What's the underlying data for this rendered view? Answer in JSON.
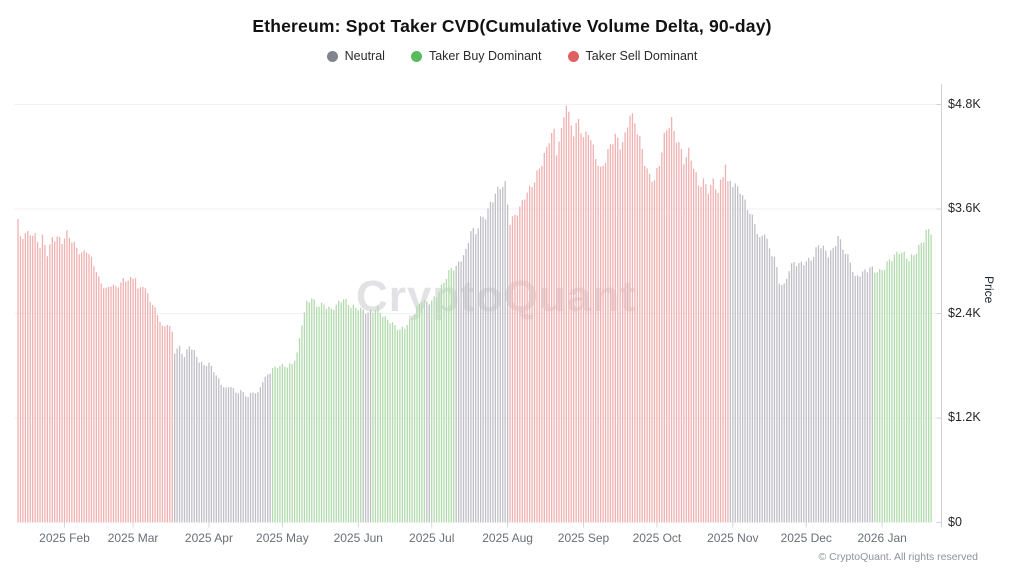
{
  "chart_data": {
    "type": "bar",
    "title": "Ethereum: Spot Taker CVD(Cumulative Volume Delta, 90-day)",
    "watermark": "CryptoQuant",
    "footer": "© CryptoQuant. All rights reserved",
    "legend": [
      {
        "key": "neutral",
        "label": "Neutral",
        "dot_color": "#83838d",
        "bar_color": "#bfbfc6"
      },
      {
        "key": "buy",
        "label": "Taker Buy Dominant",
        "dot_color": "#58bc5c",
        "bar_color": "#b2dbad"
      },
      {
        "key": "sell",
        "label": "Taker Sell Dominant",
        "dot_color": "#e15f5f",
        "bar_color": "#f0b1b1"
      }
    ],
    "y_axis": {
      "label": "Price",
      "unit": "USD",
      "range": [
        0,
        5000
      ],
      "ticks": [
        {
          "label": "$4.8K",
          "value": 4800
        },
        {
          "label": "$3.6K",
          "value": 3600
        },
        {
          "label": "$2.4K",
          "value": 2400
        },
        {
          "label": "$1.2K",
          "value": 1200
        },
        {
          "label": "$0",
          "value": 0
        }
      ]
    },
    "x_axis": {
      "unit": "day-index (daily bars, ~Jan 2025 to Jan 2026)",
      "ticks": [
        {
          "label": "2025 Feb",
          "day": 19
        },
        {
          "label": "2025 Mar",
          "day": 47
        },
        {
          "label": "2025 Apr",
          "day": 78
        },
        {
          "label": "2025 May",
          "day": 108
        },
        {
          "label": "2025 Jun",
          "day": 139
        },
        {
          "label": "2025 Jul",
          "day": 169
        },
        {
          "label": "2025 Aug",
          "day": 200
        },
        {
          "label": "2025 Sep",
          "day": 231
        },
        {
          "label": "2025 Oct",
          "day": 261
        },
        {
          "label": "2025 Nov",
          "day": 292
        },
        {
          "label": "2025 Dec",
          "day": 322
        },
        {
          "label": "2026 Jan",
          "day": 353
        }
      ]
    },
    "series": {
      "name": "ETH price colored by taker CVD state",
      "point_format": [
        "day",
        "price_usd",
        "state"
      ],
      "keypoints": [
        [
          0,
          3440,
          "sell"
        ],
        [
          1,
          3260,
          "sell"
        ],
        [
          3,
          3330,
          "sell"
        ],
        [
          5,
          3350,
          "sell"
        ],
        [
          7,
          3290,
          "sell"
        ],
        [
          9,
          3160,
          "sell"
        ],
        [
          10,
          3250,
          "sell"
        ],
        [
          12,
          3080,
          "sell"
        ],
        [
          14,
          3270,
          "sell"
        ],
        [
          16,
          3300,
          "sell"
        ],
        [
          18,
          3230,
          "sell"
        ],
        [
          20,
          3300,
          "sell"
        ],
        [
          23,
          3180,
          "sell"
        ],
        [
          26,
          3100,
          "sell"
        ],
        [
          28,
          3150,
          "sell"
        ],
        [
          31,
          2950,
          "sell"
        ],
        [
          33,
          2780,
          "sell"
        ],
        [
          36,
          2680,
          "sell"
        ],
        [
          38,
          2760,
          "sell"
        ],
        [
          40,
          2700,
          "sell"
        ],
        [
          43,
          2760,
          "sell"
        ],
        [
          46,
          2790,
          "sell"
        ],
        [
          48,
          2850,
          "sell"
        ],
        [
          49,
          2680,
          "sell"
        ],
        [
          51,
          2740,
          "sell"
        ],
        [
          53,
          2600,
          "sell"
        ],
        [
          55,
          2480,
          "sell"
        ],
        [
          57,
          2400,
          "sell"
        ],
        [
          59,
          2250,
          "sell"
        ],
        [
          61,
          2300,
          "sell"
        ],
        [
          63,
          2180,
          "sell"
        ],
        [
          64,
          1950,
          "neutral"
        ],
        [
          66,
          2000,
          "neutral"
        ],
        [
          68,
          1900,
          "neutral"
        ],
        [
          70,
          2050,
          "neutral"
        ],
        [
          72,
          1970,
          "neutral"
        ],
        [
          74,
          1850,
          "neutral"
        ],
        [
          76,
          1790,
          "neutral"
        ],
        [
          78,
          1820,
          "neutral"
        ],
        [
          80,
          1750,
          "neutral"
        ],
        [
          83,
          1600,
          "neutral"
        ],
        [
          85,
          1530,
          "neutral"
        ],
        [
          87,
          1560,
          "neutral"
        ],
        [
          89,
          1480,
          "neutral"
        ],
        [
          91,
          1520,
          "neutral"
        ],
        [
          94,
          1450,
          "neutral"
        ],
        [
          96,
          1500,
          "neutral"
        ],
        [
          98,
          1470,
          "neutral"
        ],
        [
          100,
          1620,
          "neutral"
        ],
        [
          102,
          1700,
          "neutral"
        ],
        [
          104,
          1780,
          "buy"
        ],
        [
          107,
          1800,
          "buy"
        ],
        [
          110,
          1780,
          "buy"
        ],
        [
          112,
          1820,
          "buy"
        ],
        [
          114,
          1950,
          "buy"
        ],
        [
          116,
          2300,
          "buy"
        ],
        [
          118,
          2520,
          "buy"
        ],
        [
          120,
          2560,
          "buy"
        ],
        [
          122,
          2480,
          "buy"
        ],
        [
          125,
          2520,
          "buy"
        ],
        [
          128,
          2450,
          "buy"
        ],
        [
          130,
          2480,
          "buy"
        ],
        [
          133,
          2560,
          "buy"
        ],
        [
          136,
          2500,
          "buy"
        ],
        [
          139,
          2470,
          "buy"
        ],
        [
          141,
          2420,
          "neutral"
        ],
        [
          143,
          2390,
          "neutral"
        ],
        [
          145,
          2430,
          "buy"
        ],
        [
          147,
          2480,
          "buy"
        ],
        [
          150,
          2350,
          "buy"
        ],
        [
          152,
          2300,
          "buy"
        ],
        [
          154,
          2240,
          "buy"
        ],
        [
          156,
          2210,
          "buy"
        ],
        [
          158,
          2260,
          "buy"
        ],
        [
          160,
          2320,
          "buy"
        ],
        [
          163,
          2450,
          "buy"
        ],
        [
          165,
          2540,
          "buy"
        ],
        [
          167,
          2520,
          "neutral"
        ],
        [
          169,
          2560,
          "buy"
        ],
        [
          171,
          2620,
          "buy"
        ],
        [
          173,
          2700,
          "buy"
        ],
        [
          175,
          2800,
          "buy"
        ],
        [
          177,
          2905,
          "buy"
        ],
        [
          179,
          2940,
          "neutral"
        ],
        [
          181,
          3050,
          "neutral"
        ],
        [
          183,
          3120,
          "neutral"
        ],
        [
          185,
          3345,
          "neutral"
        ],
        [
          187,
          3300,
          "neutral"
        ],
        [
          189,
          3480,
          "neutral"
        ],
        [
          191,
          3540,
          "neutral"
        ],
        [
          193,
          3680,
          "neutral"
        ],
        [
          195,
          3770,
          "neutral"
        ],
        [
          197,
          3830,
          "neutral"
        ],
        [
          199,
          3860,
          "neutral"
        ],
        [
          201,
          3460,
          "sell"
        ],
        [
          203,
          3550,
          "sell"
        ],
        [
          205,
          3620,
          "sell"
        ],
        [
          207,
          3730,
          "sell"
        ],
        [
          209,
          3800,
          "sell"
        ],
        [
          211,
          3920,
          "sell"
        ],
        [
          213,
          4100,
          "sell"
        ],
        [
          215,
          4230,
          "sell"
        ],
        [
          217,
          4400,
          "sell"
        ],
        [
          219,
          4460,
          "sell"
        ],
        [
          220,
          4230,
          "sell"
        ],
        [
          222,
          4480,
          "sell"
        ],
        [
          223,
          4700,
          "sell"
        ],
        [
          224,
          4840,
          "sell"
        ],
        [
          225,
          4700,
          "sell"
        ],
        [
          227,
          4490,
          "sell"
        ],
        [
          229,
          4600,
          "sell"
        ],
        [
          231,
          4375,
          "sell"
        ],
        [
          233,
          4490,
          "sell"
        ],
        [
          235,
          4320,
          "sell"
        ],
        [
          238,
          4055,
          "sell"
        ],
        [
          240,
          4150,
          "sell"
        ],
        [
          242,
          4300,
          "sell"
        ],
        [
          244,
          4440,
          "sell"
        ],
        [
          246,
          4350,
          "sell"
        ],
        [
          248,
          4460,
          "sell"
        ],
        [
          250,
          4700,
          "sell"
        ],
        [
          252,
          4560,
          "sell"
        ],
        [
          254,
          4380,
          "sell"
        ],
        [
          256,
          4150,
          "sell"
        ],
        [
          258,
          4000,
          "sell"
        ],
        [
          260,
          3950,
          "sell"
        ],
        [
          262,
          4100,
          "sell"
        ],
        [
          264,
          4400,
          "sell"
        ],
        [
          266,
          4570,
          "sell"
        ],
        [
          267,
          4630,
          "sell"
        ],
        [
          268,
          4500,
          "sell"
        ],
        [
          270,
          4380,
          "sell"
        ],
        [
          272,
          4150,
          "sell"
        ],
        [
          274,
          4230,
          "sell"
        ],
        [
          276,
          4070,
          "sell"
        ],
        [
          278,
          3880,
          "sell"
        ],
        [
          280,
          3950,
          "sell"
        ],
        [
          282,
          3830,
          "sell"
        ],
        [
          284,
          3900,
          "sell"
        ],
        [
          286,
          3770,
          "sell"
        ],
        [
          288,
          3980,
          "sell"
        ],
        [
          289,
          4150,
          "sell"
        ],
        [
          290,
          3900,
          "sell"
        ],
        [
          291,
          3950,
          "neutral"
        ],
        [
          293,
          3880,
          "neutral"
        ],
        [
          295,
          3800,
          "neutral"
        ],
        [
          297,
          3650,
          "neutral"
        ],
        [
          299,
          3550,
          "neutral"
        ],
        [
          301,
          3460,
          "neutral"
        ],
        [
          303,
          3265,
          "neutral"
        ],
        [
          305,
          3340,
          "neutral"
        ],
        [
          307,
          3110,
          "neutral"
        ],
        [
          309,
          3030,
          "neutral"
        ],
        [
          311,
          2770,
          "neutral"
        ],
        [
          313,
          2735,
          "neutral"
        ],
        [
          315,
          2920,
          "neutral"
        ],
        [
          317,
          2975,
          "neutral"
        ],
        [
          319,
          2940,
          "neutral"
        ],
        [
          322,
          3000,
          "neutral"
        ],
        [
          325,
          3080,
          "neutral"
        ],
        [
          327,
          3195,
          "neutral"
        ],
        [
          329,
          3130,
          "neutral"
        ],
        [
          331,
          3060,
          "neutral"
        ],
        [
          333,
          3140,
          "neutral"
        ],
        [
          335,
          3310,
          "neutral"
        ],
        [
          336,
          3240,
          "neutral"
        ],
        [
          338,
          3100,
          "neutral"
        ],
        [
          340,
          2975,
          "neutral"
        ],
        [
          342,
          2790,
          "neutral"
        ],
        [
          344,
          2860,
          "neutral"
        ],
        [
          346,
          2905,
          "neutral"
        ],
        [
          348,
          2940,
          "neutral"
        ],
        [
          350,
          2880,
          "buy"
        ],
        [
          352,
          2860,
          "buy"
        ],
        [
          354,
          2920,
          "buy"
        ],
        [
          356,
          3030,
          "buy"
        ],
        [
          358,
          3080,
          "buy"
        ],
        [
          360,
          3115,
          "buy"
        ],
        [
          362,
          3060,
          "buy"
        ],
        [
          364,
          3000,
          "buy"
        ],
        [
          366,
          3080,
          "buy"
        ],
        [
          368,
          3180,
          "buy"
        ],
        [
          370,
          3265,
          "buy"
        ],
        [
          371,
          3345,
          "buy"
        ],
        [
          373,
          3320,
          "buy"
        ]
      ]
    }
  }
}
